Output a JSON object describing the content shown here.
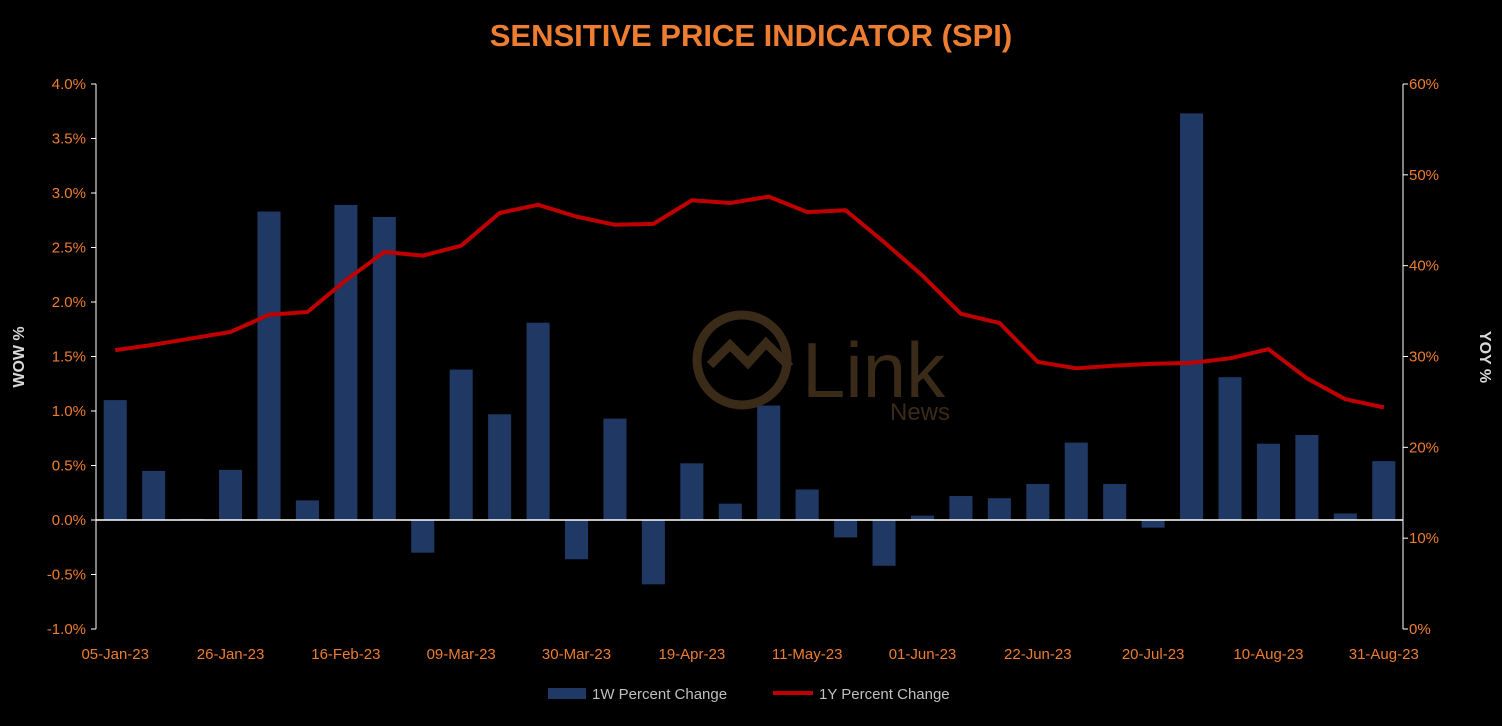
{
  "chart_data": {
    "type": "bar",
    "title": "SENSITIVE PRICE INDICATOR (SPI)",
    "ylabel": "WOW %",
    "y2label": "YOY %",
    "ylim": [
      -0.01,
      0.04
    ],
    "y2lim": [
      0,
      0.6
    ],
    "yticks": [
      "4.0%",
      "3.5%",
      "3.0%",
      "2.5%",
      "2.0%",
      "1.5%",
      "1.0%",
      "0.5%",
      "0.0%",
      "-0.5%",
      "-1.0%"
    ],
    "y2ticks": [
      "60%",
      "50%",
      "40%",
      "30%",
      "20%",
      "10%",
      "0%"
    ],
    "tick_labels": [
      "05-Jan-23",
      "26-Jan-23",
      "16-Feb-23",
      "09-Mar-23",
      "30-Mar-23",
      "19-Apr-23",
      "11-May-23",
      "01-Jun-23",
      "22-Jun-23",
      "20-Jul-23",
      "10-Aug-23",
      "31-Aug-23"
    ],
    "legend_position": "bottom",
    "grid": false,
    "series": [
      {
        "name": "1W Percent Change",
        "type": "bar",
        "axis": "left",
        "color": "#1F3864",
        "values": [
          1.1,
          0.45,
          0.01,
          0.46,
          2.83,
          0.18,
          2.89,
          2.78,
          -0.3,
          1.38,
          0.97,
          1.81,
          -0.36,
          0.93,
          -0.59,
          0.52,
          0.15,
          1.05,
          0.28,
          -0.16,
          -0.42,
          0.04,
          0.22,
          0.2,
          0.33,
          0.71,
          0.33,
          -0.07,
          3.73,
          1.31,
          0.7,
          0.78,
          0.06,
          0.54
        ]
      },
      {
        "name": "1Y Percent Change",
        "type": "line",
        "axis": "right",
        "color": "#C00000",
        "values": [
          30.7,
          31.3,
          32.0,
          32.7,
          34.6,
          34.9,
          38.4,
          41.5,
          41.1,
          42.2,
          45.8,
          46.7,
          45.4,
          44.5,
          44.6,
          47.2,
          46.9,
          47.6,
          45.9,
          46.1,
          42.6,
          38.9,
          34.7,
          33.7,
          29.4,
          28.7,
          29.0,
          29.2,
          29.3,
          29.8,
          30.8,
          27.6,
          25.3,
          24.4
        ]
      }
    ]
  },
  "watermark": {
    "brand": "Link",
    "sub": "News"
  }
}
